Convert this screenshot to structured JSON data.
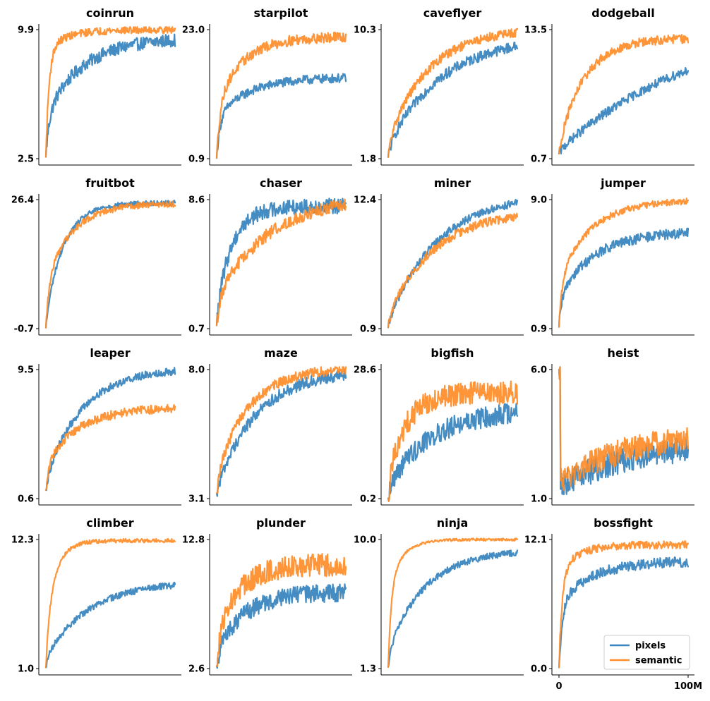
{
  "chart_data": {
    "type": "line",
    "layout": "4x4 grid of small multiples",
    "series_names": [
      "pixels",
      "semantic"
    ],
    "colors": {
      "pixels": "#3a86bf",
      "semantic": "#ff8c28"
    },
    "x_tick_labels": [
      "0",
      "100M"
    ],
    "x_range": [
      0,
      100000000
    ],
    "legend_location": "bottom-right of last panel",
    "panels": [
      {
        "title": "coinrun",
        "ylim": [
          2.5,
          9.9
        ],
        "yticks": [
          "2.5",
          "9.9"
        ],
        "series": [
          {
            "name": "pixels",
            "start": 2.6,
            "jump": 5.0,
            "final": 9.3,
            "rate": 3.5,
            "noise": 0.05
          },
          {
            "name": "semantic",
            "start": 2.6,
            "jump": 8.8,
            "final": 9.9,
            "rate": 6.0,
            "noise": 0.03
          }
        ]
      },
      {
        "title": "starpilot",
        "ylim": [
          0.9,
          23.0
        ],
        "yticks": [
          "0.9",
          "23.0"
        ],
        "series": [
          {
            "name": "pixels",
            "start": 1.0,
            "jump": 8.0,
            "final": 14.7,
            "rate": 4.0,
            "noise": 0.035
          },
          {
            "name": "semantic",
            "start": 1.0,
            "jump": 10.0,
            "final": 21.7,
            "rate": 5.0,
            "noise": 0.04
          }
        ]
      },
      {
        "title": "caveflyer",
        "ylim": [
          1.8,
          10.3
        ],
        "yticks": [
          "1.8",
          "10.3"
        ],
        "series": [
          {
            "name": "pixels",
            "start": 1.9,
            "jump": 2.6,
            "final": 9.2,
            "rate": 2.4,
            "noise": 0.04
          },
          {
            "name": "semantic",
            "start": 1.9,
            "jump": 3.0,
            "final": 10.1,
            "rate": 3.2,
            "noise": 0.035
          }
        ]
      },
      {
        "title": "dodgeball",
        "ylim": [
          0.7,
          13.5
        ],
        "yticks": [
          "0.7",
          "13.5"
        ],
        "series": [
          {
            "name": "pixels",
            "start": 1.2,
            "jump": 1.5,
            "final": 9.5,
            "rate": 0.9,
            "noise": 0.035
          },
          {
            "name": "semantic",
            "start": 1.2,
            "jump": 2.0,
            "final": 12.6,
            "rate": 5.0,
            "noise": 0.035
          }
        ]
      },
      {
        "title": "fruitbot",
        "ylim": [
          -0.7,
          26.4
        ],
        "yticks": [
          "-0.7",
          "26.4"
        ],
        "series": [
          {
            "name": "pixels",
            "start": -0.5,
            "jump": 2.0,
            "final": 25.7,
            "rate": 7.0,
            "noise": 0.02
          },
          {
            "name": "semantic",
            "start": -0.5,
            "jump": 9.0,
            "final": 25.5,
            "rate": 5.0,
            "noise": 0.025
          }
        ]
      },
      {
        "title": "chaser",
        "ylim": [
          0.7,
          8.6
        ],
        "yticks": [
          "0.7",
          "8.6"
        ],
        "series": [
          {
            "name": "pixels",
            "start": 0.9,
            "jump": 2.0,
            "final": 8.2,
            "rate": 8.0,
            "noise": 0.06
          },
          {
            "name": "semantic",
            "start": 0.9,
            "jump": 2.5,
            "final": 8.3,
            "rate": 2.5,
            "noise": 0.05
          }
        ]
      },
      {
        "title": "miner",
        "ylim": [
          0.9,
          12.4
        ],
        "yticks": [
          "0.9",
          "12.4"
        ],
        "series": [
          {
            "name": "pixels",
            "start": 1.0,
            "jump": 1.5,
            "final": 12.1,
            "rate": 2.6,
            "noise": 0.03
          },
          {
            "name": "semantic",
            "start": 1.0,
            "jump": 2.0,
            "final": 10.9,
            "rate": 2.8,
            "noise": 0.035
          }
        ]
      },
      {
        "title": "jumper",
        "ylim": [
          0.9,
          9.0
        ],
        "yticks": [
          "0.9",
          "9.0"
        ],
        "series": [
          {
            "name": "pixels",
            "start": 1.0,
            "jump": 3.0,
            "final": 6.9,
            "rate": 3.5,
            "noise": 0.04
          },
          {
            "name": "semantic",
            "start": 1.0,
            "jump": 4.0,
            "final": 8.9,
            "rate": 4.0,
            "noise": 0.025
          }
        ]
      },
      {
        "title": "leaper",
        "ylim": [
          0.6,
          9.5
        ],
        "yticks": [
          "0.6",
          "9.5"
        ],
        "series": [
          {
            "name": "pixels",
            "start": 1.2,
            "jump": 2.0,
            "final": 9.4,
            "rate": 3.5,
            "noise": 0.03
          },
          {
            "name": "semantic",
            "start": 1.2,
            "jump": 3.0,
            "final": 6.8,
            "rate": 4.0,
            "noise": 0.035
          }
        ]
      },
      {
        "title": "maze",
        "ylim": [
          3.1,
          8.0
        ],
        "yticks": [
          "3.1",
          "8.0"
        ],
        "series": [
          {
            "name": "pixels",
            "start": 3.3,
            "jump": 3.5,
            "final": 7.8,
            "rate": 3.2,
            "noise": 0.045
          },
          {
            "name": "semantic",
            "start": 3.3,
            "jump": 4.0,
            "final": 8.0,
            "rate": 4.0,
            "noise": 0.04
          }
        ]
      },
      {
        "title": "bigfish",
        "ylim": [
          0.2,
          28.6
        ],
        "yticks": [
          "0.2",
          "28.6"
        ],
        "series": [
          {
            "name": "pixels",
            "start": 0.3,
            "jump": 3.0,
            "final": 19.0,
            "rate": 3.0,
            "noise": 0.08
          },
          {
            "name": "semantic",
            "start": 0.3,
            "jump": 5.0,
            "final": 23.5,
            "rate": 7.0,
            "noise": 0.09
          }
        ]
      },
      {
        "title": "heist",
        "ylim": [
          1.0,
          6.0
        ],
        "yticks": [
          "1.0",
          "6.0"
        ],
        "series": [
          {
            "name": "pixels",
            "start": 6.0,
            "jump": 1.5,
            "final": 2.9,
            "rate": 1.5,
            "noise": 0.1
          },
          {
            "name": "semantic",
            "start": 6.0,
            "jump": 1.6,
            "final": 3.3,
            "rate": 2.0,
            "noise": 0.1
          }
        ]
      },
      {
        "title": "climber",
        "ylim": [
          1.0,
          12.3
        ],
        "yticks": [
          "1.0",
          "12.3"
        ],
        "series": [
          {
            "name": "pixels",
            "start": 1.1,
            "jump": 2.0,
            "final": 8.3,
            "rate": 3.0,
            "noise": 0.025
          },
          {
            "name": "semantic",
            "start": 1.1,
            "jump": 5.0,
            "final": 12.2,
            "rate": 12.0,
            "noise": 0.015
          }
        ]
      },
      {
        "title": "plunder",
        "ylim": [
          2.6,
          12.8
        ],
        "yticks": [
          "2.6",
          "12.8"
        ],
        "series": [
          {
            "name": "pixels",
            "start": 2.8,
            "jump": 4.0,
            "final": 8.6,
            "rate": 4.5,
            "noise": 0.07
          },
          {
            "name": "semantic",
            "start": 2.8,
            "jump": 5.0,
            "final": 10.8,
            "rate": 6.0,
            "noise": 0.09
          }
        ]
      },
      {
        "title": "ninja",
        "ylim": [
          1.3,
          10.0
        ],
        "yticks": [
          "1.3",
          "10.0"
        ],
        "series": [
          {
            "name": "pixels",
            "start": 1.4,
            "jump": 2.5,
            "final": 9.1,
            "rate": 3.5,
            "noise": 0.025
          },
          {
            "name": "semantic",
            "start": 1.4,
            "jump": 7.0,
            "final": 10.0,
            "rate": 9.0,
            "noise": 0.01
          }
        ]
      },
      {
        "title": "bossfight",
        "ylim": [
          0.0,
          12.1
        ],
        "yticks": [
          "0.0",
          "12.1"
        ],
        "series": [
          {
            "name": "pixels",
            "start": 0.1,
            "jump": 6.0,
            "final": 10.0,
            "rate": 4.0,
            "noise": 0.04
          },
          {
            "name": "semantic",
            "start": 0.1,
            "jump": 9.0,
            "final": 11.6,
            "rate": 7.0,
            "noise": 0.03
          }
        ]
      }
    ]
  }
}
